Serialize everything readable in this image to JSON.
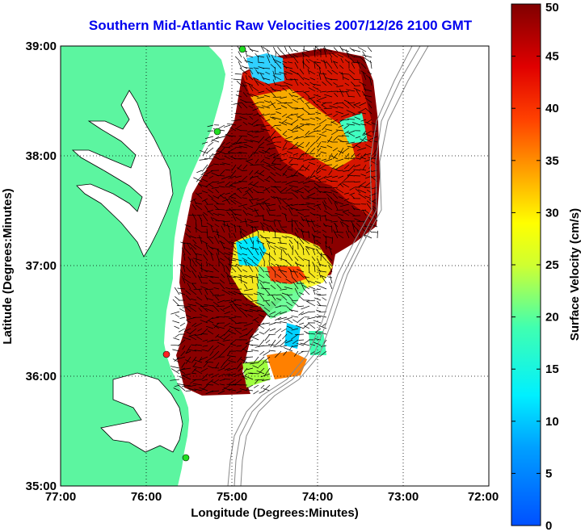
{
  "title": "Southern Mid-Atlantic Raw Velocities 2007/12/26 2100 GMT",
  "x_axis": {
    "label": "Longitude (Degrees:Minutes)",
    "ticks": [
      "77:00",
      "76:00",
      "75:00",
      "74:00",
      "73:00",
      "72:00"
    ]
  },
  "y_axis": {
    "label": "Latitude (Degrees:Minutes)",
    "ticks": [
      "39:00",
      "38:00",
      "37:00",
      "36:00",
      "35:00"
    ]
  },
  "colorbar": {
    "label": "Surface Velocity (cm/s)",
    "ticks": [
      "50",
      "45",
      "40",
      "35",
      "30",
      "25",
      "20",
      "15",
      "10",
      "5",
      "0"
    ],
    "range": [
      0,
      50
    ],
    "colormap": "jet"
  },
  "colors": {
    "land": "#5cf5a0",
    "water": "#ffffff",
    "title": "#0000ee",
    "station_green": "#22dd22",
    "station_red": "#ff2222"
  }
}
